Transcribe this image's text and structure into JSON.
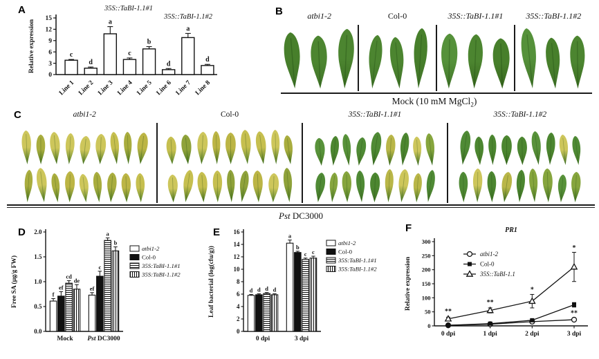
{
  "figure": {
    "bg": "#ffffff",
    "ink": "#111111"
  },
  "panels": {
    "A": {
      "label": "A",
      "chart_data": {
        "type": "bar",
        "title_left": "35S::TaBI-1.1#1",
        "title_right": "35S::TaBI-1.1#2",
        "ylabel": "Relative expression",
        "ylim": [
          0,
          15
        ],
        "yticks": [
          0,
          3,
          6,
          9,
          12,
          15
        ],
        "categories": [
          "Line 1",
          "Line 2",
          "Line 3",
          "Line 4",
          "Line 5",
          "Line 6",
          "Line 7",
          "Line 8"
        ],
        "values": [
          3.8,
          1.7,
          10.8,
          4.0,
          6.8,
          1.3,
          9.8,
          2.4
        ],
        "errors": [
          0.2,
          0.3,
          1.9,
          0.4,
          0.6,
          0.3,
          1.1,
          0.3
        ],
        "sig_letters": [
          "c",
          "d",
          "a",
          "c",
          "b",
          "d",
          "a",
          "d"
        ],
        "bar_fill": "#ffffff"
      }
    },
    "B": {
      "label": "B",
      "groups": [
        {
          "name": "atbi1-2",
          "italic": true,
          "leaf_count": 3
        },
        {
          "name": "Col-0",
          "italic": false,
          "leaf_count": 3
        },
        {
          "name": "35S::TaBI-1.1#1",
          "italic": true,
          "leaf_count": 3
        },
        {
          "name": "35S::TaBI-1.1#2",
          "italic": true,
          "leaf_count": 3
        }
      ],
      "caption_pre": "Mock (10 mM MgCl",
      "caption_sub": "2",
      "caption_post": ")"
    },
    "C": {
      "label": "C",
      "groups": [
        {
          "name": "atbi1-2",
          "italic": true,
          "infection": "severe"
        },
        {
          "name": "Col-0",
          "italic": false,
          "infection": "severe"
        },
        {
          "name": "35S::TaBI-1.1#1",
          "italic": true,
          "infection": "mild"
        },
        {
          "name": "35S::TaBI-1.1#2",
          "italic": true,
          "infection": "mild"
        }
      ],
      "rows": 2,
      "leaves_per_row": 9,
      "caption_italic": "Pst",
      "caption_normal": " DC3000"
    },
    "D": {
      "label": "D",
      "chart_data": {
        "type": "bar",
        "ylabel": "Free SA (μg/g FW)",
        "ylim": [
          0,
          2
        ],
        "yticks": [
          "0.0",
          "0.5",
          "1.0",
          "1.5",
          "2.0"
        ],
        "categories": [
          "Mock",
          "Pst DC3000"
        ],
        "italic_words": [
          "Pst"
        ],
        "series": [
          {
            "name": "atbi1-2",
            "italic": true,
            "fill": "white",
            "values": [
              0.61,
              0.73
            ],
            "errors": [
              0.05,
              0.05
            ],
            "letters": [
              "f",
              "ef"
            ]
          },
          {
            "name": "Col-0",
            "italic": false,
            "fill": "black",
            "values": [
              0.71,
              1.11
            ],
            "errors": [
              0.09,
              0.1
            ],
            "letters": [
              "ef",
              "c"
            ]
          },
          {
            "name": "35S:TaBI-1.1#1",
            "italic": true,
            "fill": "hstripe",
            "values": [
              0.97,
              1.83
            ],
            "errors": [
              0.05,
              0.05
            ],
            "letters": [
              "cd",
              "a"
            ]
          },
          {
            "name": "35S:TaBI-1.1#2",
            "italic": true,
            "fill": "vstripe",
            "values": [
              0.85,
              1.62
            ],
            "errors": [
              0.09,
              0.08
            ],
            "letters": [
              "de",
              "b"
            ]
          }
        ],
        "legend_position": "right"
      }
    },
    "E": {
      "label": "E",
      "chart_data": {
        "type": "bar",
        "ylabel": "Leaf bacterial (log(cfu/g))",
        "ylim": [
          0,
          16
        ],
        "yticks": [
          "0",
          "2",
          "4",
          "6",
          "8",
          "10",
          "12",
          "14",
          "16"
        ],
        "categories": [
          "0 dpi",
          "3 dpi"
        ],
        "italic_words": [],
        "series": [
          {
            "name": "atbi1-2",
            "italic": true,
            "fill": "white",
            "values": [
              5.8,
              14.2
            ],
            "errors": [
              0.15,
              0.5
            ],
            "letters": [
              "d",
              "a"
            ]
          },
          {
            "name": "Col-0",
            "italic": false,
            "fill": "black",
            "values": [
              5.9,
              12.7
            ],
            "errors": [
              0.15,
              0.2
            ],
            "letters": [
              "d",
              "b"
            ]
          },
          {
            "name": "35S:TaBI-1.1#1",
            "italic": true,
            "fill": "hstripe",
            "values": [
              6.1,
              11.6
            ],
            "errors": [
              0.15,
              0.2
            ],
            "letters": [
              "d",
              "c"
            ]
          },
          {
            "name": "35S:TaBI-1.1#2",
            "italic": true,
            "fill": "vstripe",
            "values": [
              5.9,
              11.8
            ],
            "errors": [
              0.15,
              0.3
            ],
            "letters": [
              "d",
              "c"
            ]
          }
        ],
        "legend_position": "right"
      }
    },
    "F": {
      "label": "F",
      "chart_data": {
        "type": "line",
        "title": "PR1",
        "ylabel": "Relative expression",
        "ylim": [
          0,
          300
        ],
        "yticks": [
          0,
          50,
          100,
          150,
          200,
          250,
          300
        ],
        "categories": [
          "0 dpi",
          "1 dpi",
          "2 dpi",
          "3 dpi"
        ],
        "series": [
          {
            "name": "atbi1-2",
            "italic": true,
            "marker": "circle-open",
            "values": [
              2,
              6,
              15,
              22
            ],
            "errors": [
              1,
              2,
              4,
              6
            ]
          },
          {
            "name": "Col-0",
            "italic": false,
            "marker": "square-filled",
            "values": [
              2,
              8,
              20,
              75
            ],
            "errors": [
              1,
              2,
              3,
              8
            ]
          },
          {
            "name": "35S::TaBI-1.1",
            "italic": true,
            "marker": "triangle-open",
            "values": [
              25,
              55,
              88,
              210
            ],
            "errors": [
              6,
              9,
              24,
              52
            ]
          }
        ],
        "annotations": [
          {
            "x_index": 0,
            "value": 44,
            "text": "**"
          },
          {
            "x_index": 1,
            "value": 76,
            "text": "**"
          },
          {
            "x_index": 2,
            "value": 122,
            "text": "*"
          },
          {
            "x_index": 3,
            "value": 270,
            "text": "*"
          },
          {
            "x_index": 3,
            "value": 38,
            "text": "**"
          }
        ],
        "legend_position": "inside-top-left"
      }
    }
  },
  "leaf_colors": {
    "healthy_tips": [
      "#4c8530",
      "#55913a",
      "#477f2b"
    ],
    "healthy_bases": [
      "#39671f",
      "#417429",
      "#3c6e22"
    ],
    "severe_tips": [
      "#c6bf4f",
      "#bcb545",
      "#a9ad3e",
      "#cdc65b",
      "#8fa23a"
    ],
    "severe_bases": [
      "#4e7d27",
      "#57862d",
      "#46751f"
    ],
    "mild_tips": [
      "#4c8630",
      "#b9b648",
      "#58923a",
      "#86a53d",
      "#4f8a35",
      "#cdc65b"
    ],
    "mild_bases": [
      "#3c7022",
      "#497b28",
      "#447527"
    ]
  }
}
